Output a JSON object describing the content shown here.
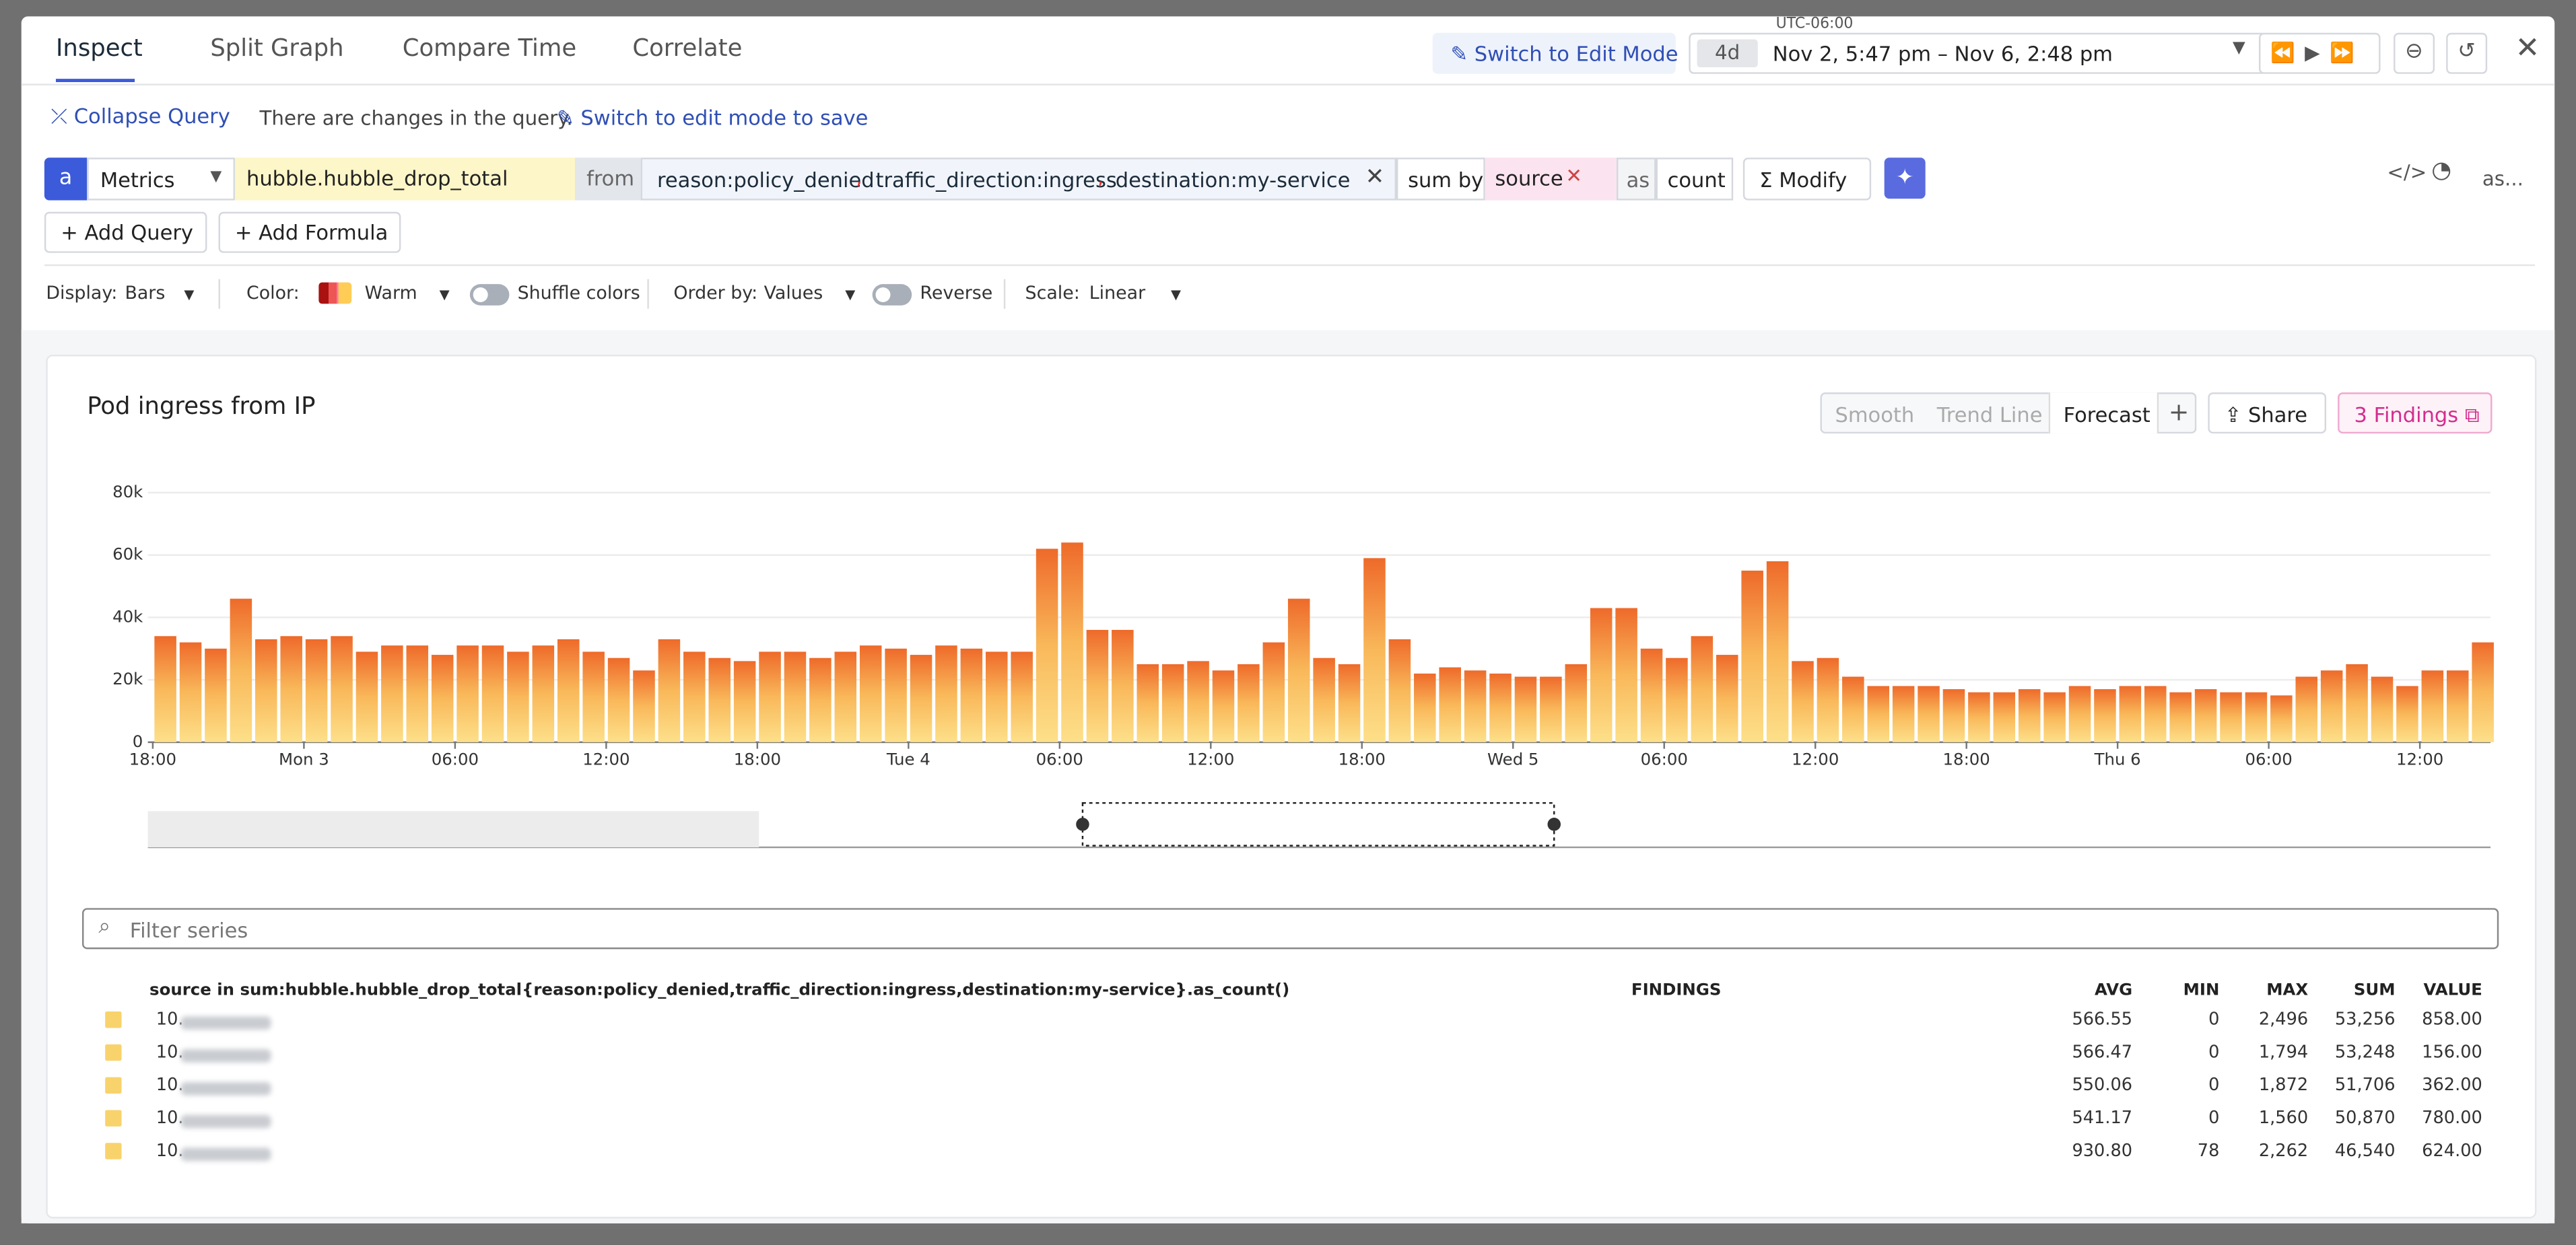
{
  "tabs": [
    "Inspect",
    "Split Graph",
    "Compare Time",
    "Correlate"
  ],
  "header": {
    "edit_mode": "Switch to Edit Mode",
    "timezone": "UTC-06:00",
    "range_short": "4d",
    "range": "Nov 2, 5:47 pm – Nov 6, 2:48 pm"
  },
  "query_bar": {
    "collapse": "Collapse Query",
    "notice": "There are changes in the query.",
    "save": "Switch to edit mode to save"
  },
  "query": {
    "letter": "a",
    "source": "Metrics",
    "metric": "hubble.hubble_drop_total",
    "from": "from",
    "filters": [
      "reason:policy_denied",
      "traffic_direction:ingress",
      "destination:my-service"
    ],
    "sum_by": "sum by",
    "group": "source",
    "as": "as",
    "rollup": "count",
    "modify": "Modify",
    "more": "as..."
  },
  "add_query": "Add Query",
  "add_formula": "Add Formula",
  "options": {
    "display_label": "Display:",
    "display": "Bars",
    "color_label": "Color:",
    "color": "Warm",
    "shuffle": "Shuffle colors",
    "order_label": "Order by:",
    "order": "Values",
    "reverse": "Reverse",
    "scale_label": "Scale:",
    "scale": "Linear"
  },
  "widget": {
    "smooth": "Smooth",
    "trend": "Trend Line",
    "forecast": "Forecast",
    "share": "Share",
    "findings": "3 Findings"
  },
  "chart_data": {
    "type": "bar",
    "title": "Pod ingress from IP",
    "categories": [
      "18:00",
      null,
      null,
      null,
      null,
      null,
      "Mon 3",
      null,
      null,
      null,
      null,
      null,
      "06:00",
      null,
      null,
      null,
      null,
      null,
      "12:00",
      null,
      null,
      null,
      null,
      null,
      "18:00",
      null,
      null,
      null,
      null,
      null,
      "Tue 4",
      null,
      null,
      null,
      null,
      null,
      "06:00",
      null,
      null,
      null,
      null,
      null,
      "12:00",
      null,
      null,
      null,
      null,
      null,
      "18:00",
      null,
      null,
      null,
      null,
      null,
      "Wed 5",
      null,
      null,
      null,
      null,
      null,
      "06:00",
      null,
      null,
      null,
      null,
      null,
      "12:00",
      null,
      null,
      null,
      null,
      null,
      "18:00",
      null,
      null,
      null,
      null,
      null,
      "Thu 6",
      null,
      null,
      null,
      null,
      null,
      "06:00",
      null,
      null,
      null,
      null,
      null,
      "12:00",
      null,
      null
    ],
    "values": [
      34000,
      32000,
      30000,
      46000,
      33000,
      34000,
      33000,
      34000,
      29000,
      31000,
      31000,
      28000,
      31000,
      31000,
      29000,
      31000,
      33000,
      29000,
      27000,
      23000,
      33000,
      29000,
      27000,
      26000,
      29000,
      29000,
      27000,
      29000,
      31000,
      30000,
      28000,
      31000,
      30000,
      29000,
      29000,
      62000,
      64000,
      36000,
      36000,
      25000,
      25000,
      26000,
      23000,
      25000,
      32000,
      46000,
      27000,
      25000,
      59000,
      33000,
      22000,
      24000,
      23000,
      22000,
      21000,
      21000,
      25000,
      43000,
      43000,
      30000,
      27000,
      34000,
      28000,
      55000,
      58000,
      26000,
      27000,
      21000,
      18000,
      18000,
      18000,
      17000,
      16000,
      16000,
      17000,
      16000,
      18000,
      17000,
      18000,
      18000,
      16000,
      17000,
      16000,
      16000,
      15000,
      21000,
      23000,
      25000,
      21000,
      18000,
      23000,
      23000,
      32000
    ],
    "colors": [
      "#fde08a",
      "#f9b85a",
      "#ee6a2a"
    ],
    "ylim": [
      0,
      80000
    ],
    "yticks": [
      0,
      {
        "value": 20000,
        "label": "20k"
      },
      {
        "value": 40000,
        "label": "40k"
      },
      {
        "value": 60000,
        "label": "60k"
      },
      {
        "value": 80000,
        "label": "80k"
      }
    ],
    "grid": true
  },
  "filter_placeholder": "Filter series",
  "table": {
    "columns": [
      "source in sum:hubble.hubble_drop_total{reason:policy_denied,traffic_direction:ingress,destination:my-service}.as_count()",
      "FINDINGS",
      "AVG",
      "MIN",
      "MAX",
      "SUM",
      "VALUE"
    ],
    "rows": [
      [
        "10.",
        "566.55",
        "0",
        "2,496",
        "53,256",
        "858.00"
      ],
      [
        "10.",
        "566.47",
        "0",
        "1,794",
        "53,248",
        "156.00"
      ],
      [
        "10.",
        "550.06",
        "0",
        "1,872",
        "51,706",
        "362.00"
      ],
      [
        "10.",
        "541.17",
        "0",
        "1,560",
        "50,870",
        "780.00"
      ],
      [
        "10.",
        "930.80",
        "78",
        "2,262",
        "46,540",
        "624.00"
      ]
    ]
  }
}
